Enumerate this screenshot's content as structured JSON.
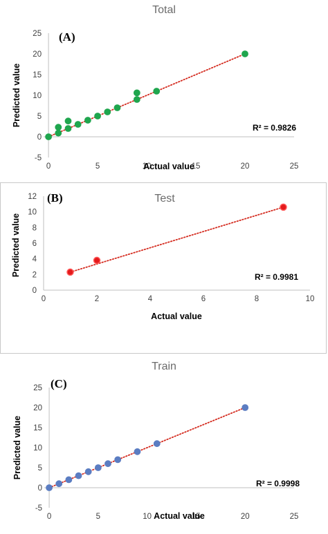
{
  "chart_data": [
    {
      "type": "scatter",
      "panel_label": "(A)",
      "title": "Total",
      "xlabel": "Actual value",
      "ylabel": "Predicted value",
      "xlim": [
        -0.5,
        25
      ],
      "ylim": [
        -5,
        25
      ],
      "xticks": [
        0,
        5,
        10,
        15,
        20,
        25
      ],
      "yticks": [
        -5,
        0,
        5,
        10,
        15,
        20,
        25
      ],
      "grid": false,
      "marker_color": "#1fa64e",
      "trendline": {
        "style": "dotted",
        "color": "#d42a1e",
        "x": [
          0,
          20
        ],
        "y": [
          0,
          20
        ]
      },
      "r2_label": "R² = 0.9826",
      "points": [
        [
          0,
          0
        ],
        [
          1,
          0.9
        ],
        [
          1,
          2.3
        ],
        [
          2,
          2.0
        ],
        [
          2,
          3.8
        ],
        [
          3,
          3.0
        ],
        [
          4,
          4.0
        ],
        [
          5,
          5.0
        ],
        [
          6,
          6.0
        ],
        [
          7,
          7.0
        ],
        [
          9,
          9.0
        ],
        [
          9,
          10.6
        ],
        [
          11,
          11.0
        ],
        [
          20,
          20.0
        ]
      ]
    },
    {
      "type": "scatter",
      "panel_label": "(B)",
      "title": "Test",
      "xlabel": "Actual value",
      "ylabel": "Predicted value",
      "xlim": [
        0,
        10
      ],
      "ylim": [
        0,
        12
      ],
      "xticks": [
        0,
        2,
        4,
        6,
        8,
        10
      ],
      "yticks": [
        0,
        2,
        4,
        6,
        8,
        10,
        12
      ],
      "grid": false,
      "marker_color": "#e41a1c",
      "trendline": {
        "style": "dotted",
        "color": "#d42a1e",
        "x": [
          1,
          9
        ],
        "y": [
          2.3,
          10.6
        ]
      },
      "r2_label": "R² = 0.9981",
      "points": [
        [
          1,
          2.3
        ],
        [
          2,
          3.8
        ],
        [
          9,
          10.6
        ]
      ]
    },
    {
      "type": "scatter",
      "panel_label": "(C)",
      "title": "Train",
      "xlabel": "Actual value",
      "ylabel": "Predicted value",
      "xlim": [
        -0.5,
        25
      ],
      "ylim": [
        -5,
        25
      ],
      "xticks": [
        0,
        5,
        10,
        15,
        20,
        25
      ],
      "yticks": [
        -5,
        0,
        5,
        10,
        15,
        20,
        25
      ],
      "grid": false,
      "marker_color": "#5b7dc2",
      "trendline": {
        "style": "dotted",
        "color": "#d42a1e",
        "x": [
          0,
          20
        ],
        "y": [
          0,
          20
        ]
      },
      "r2_label": "R² = 0.9998",
      "points": [
        [
          0,
          0
        ],
        [
          1,
          1
        ],
        [
          2,
          2
        ],
        [
          3,
          3
        ],
        [
          4,
          4
        ],
        [
          5,
          5
        ],
        [
          6,
          6
        ],
        [
          7,
          7
        ],
        [
          9,
          9
        ],
        [
          11,
          11
        ],
        [
          20,
          20
        ]
      ]
    }
  ]
}
